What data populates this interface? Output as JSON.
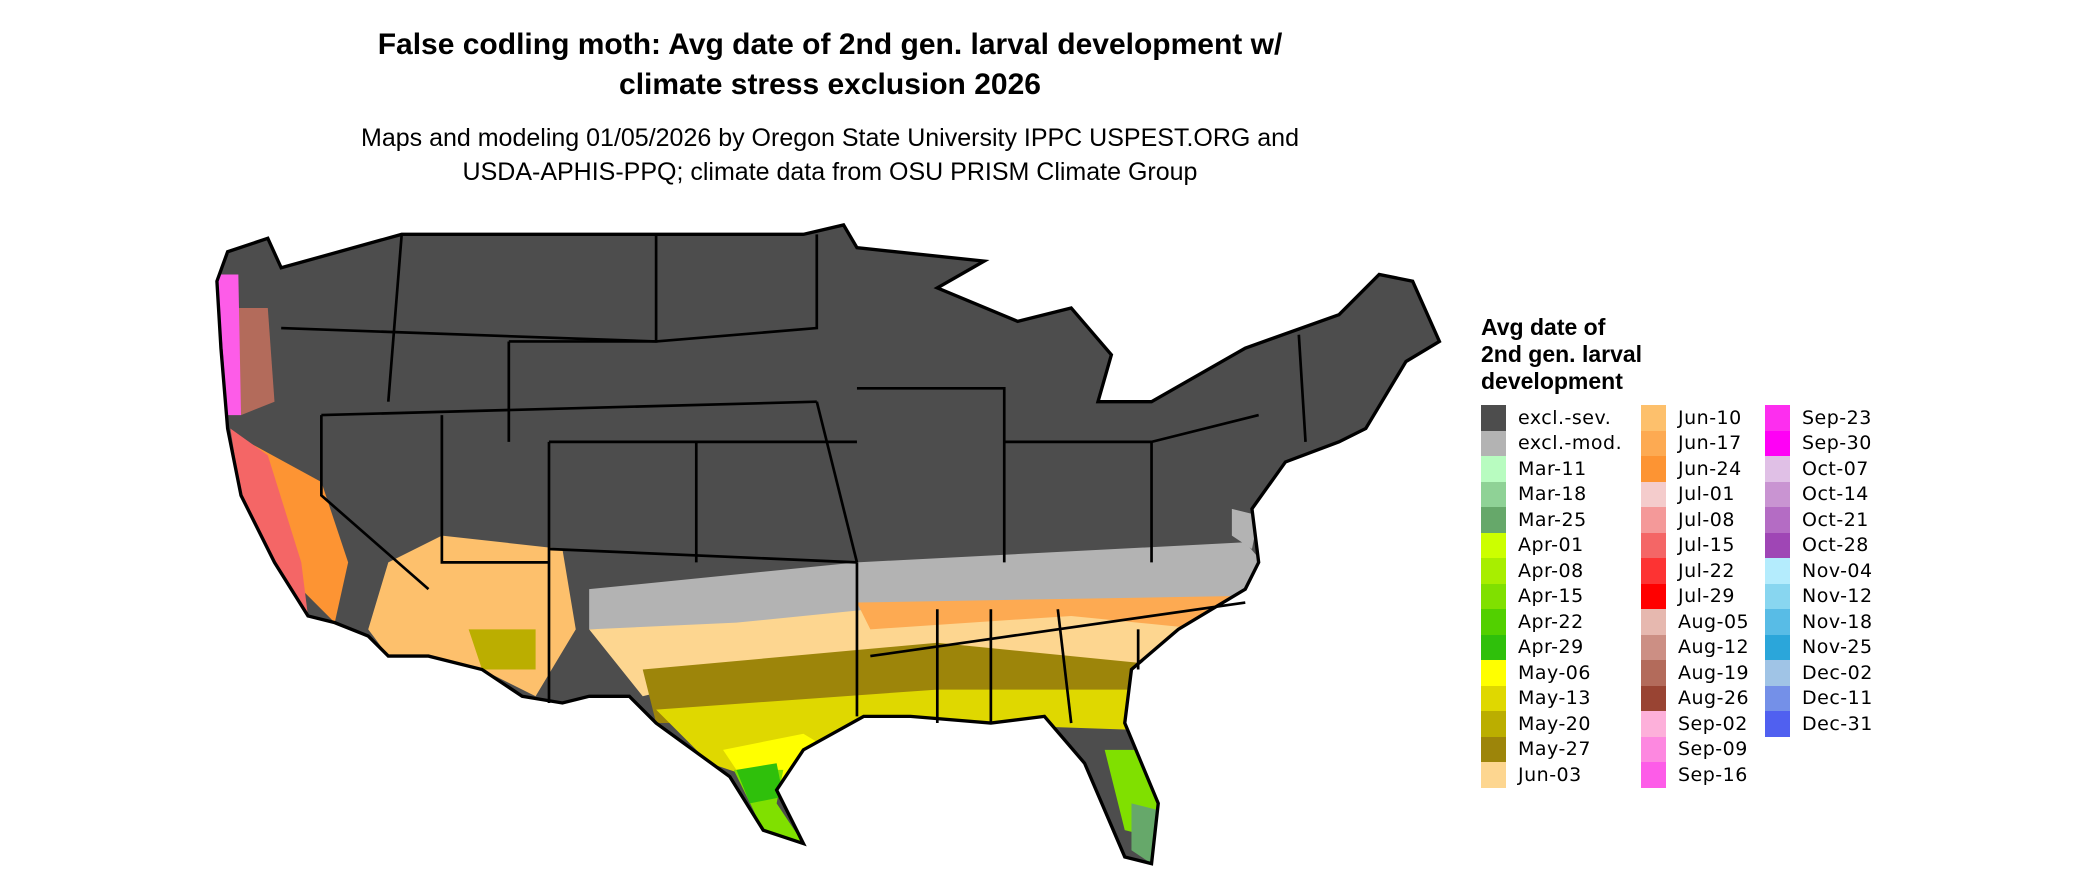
{
  "title_line1": "False codling moth: Avg date of 2nd gen. larval development w/",
  "title_line2": "climate stress exclusion 2026",
  "subtitle_line1": "Maps and modeling 01/05/2026 by Oregon State University IPPC USPEST.ORG and",
  "subtitle_line2": "USDA-APHIS-PPQ; climate data from OSU PRISM Climate Group",
  "legend": {
    "title_line1": "Avg date of",
    "title_line2": "2nd gen. larval",
    "title_line3": "development",
    "items": [
      {
        "label": "excl.-sev.",
        "color": "#4d4d4d"
      },
      {
        "label": "excl.-mod.",
        "color": "#b3b3b3"
      },
      {
        "label": "Mar-11",
        "color": "#b8fcc0"
      },
      {
        "label": "Mar-18",
        "color": "#8fd296"
      },
      {
        "label": "Mar-25",
        "color": "#66a86a"
      },
      {
        "label": "Apr-01",
        "color": "#ccff00"
      },
      {
        "label": "Apr-08",
        "color": "#a8ee00"
      },
      {
        "label": "Apr-15",
        "color": "#80e000"
      },
      {
        "label": "Apr-22",
        "color": "#52d000"
      },
      {
        "label": "Apr-29",
        "color": "#2fc00b"
      },
      {
        "label": "May-06",
        "color": "#ffff00"
      },
      {
        "label": "May-13",
        "color": "#dfd800"
      },
      {
        "label": "May-20",
        "color": "#bbae00"
      },
      {
        "label": "May-27",
        "color": "#9d850a"
      },
      {
        "label": "Jun-03",
        "color": "#fdd690"
      },
      {
        "label": "Jun-10",
        "color": "#fdc06c"
      },
      {
        "label": "Jun-17",
        "color": "#fdaa52"
      },
      {
        "label": "Jun-24",
        "color": "#fd9433"
      },
      {
        "label": "Jul-01",
        "color": "#f4cccc"
      },
      {
        "label": "Jul-08",
        "color": "#f49999"
      },
      {
        "label": "Jul-15",
        "color": "#f46666"
      },
      {
        "label": "Jul-22",
        "color": "#fd3333"
      },
      {
        "label": "Jul-29",
        "color": "#ff0000"
      },
      {
        "label": "Aug-05",
        "color": "#e6b8af"
      },
      {
        "label": "Aug-12",
        "color": "#cc8f84"
      },
      {
        "label": "Aug-19",
        "color": "#b36b5b"
      },
      {
        "label": "Aug-26",
        "color": "#994433"
      },
      {
        "label": "Sep-02",
        "color": "#fdb0da"
      },
      {
        "label": "Sep-09",
        "color": "#fd88e0"
      },
      {
        "label": "Sep-16",
        "color": "#fd5ce8"
      },
      {
        "label": "Sep-23",
        "color": "#fd2eef"
      },
      {
        "label": "Sep-30",
        "color": "#ff00f6"
      },
      {
        "label": "Oct-07",
        "color": "#e0c0e6"
      },
      {
        "label": "Oct-14",
        "color": "#c994d2"
      },
      {
        "label": "Oct-21",
        "color": "#b46cc4"
      },
      {
        "label": "Oct-28",
        "color": "#9f46b5"
      },
      {
        "label": "Nov-04",
        "color": "#b4ecfd"
      },
      {
        "label": "Nov-12",
        "color": "#88d6f0"
      },
      {
        "label": "Nov-18",
        "color": "#58bce6"
      },
      {
        "label": "Nov-25",
        "color": "#2ba6da"
      },
      {
        "label": "Dec-02",
        "color": "#a0c4e6"
      },
      {
        "label": "Dec-11",
        "color": "#7490e8"
      },
      {
        "label": "Dec-31",
        "color": "#5060f0"
      }
    ]
  }
}
